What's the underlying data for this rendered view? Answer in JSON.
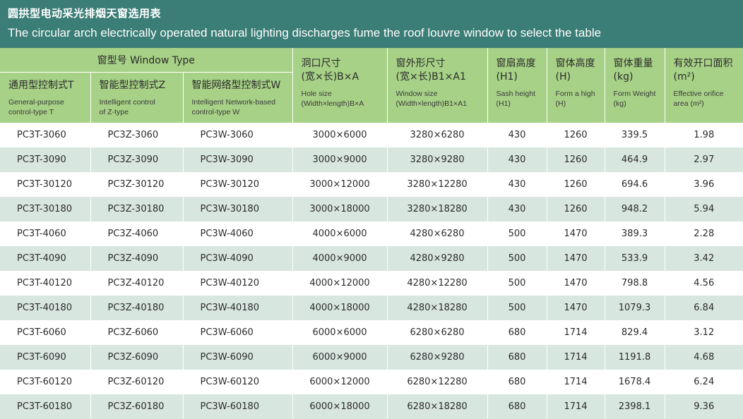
{
  "banner": {
    "title_cn": "圆拱型电动采光排烟天窗选用表",
    "title_en": "The circular arch electrically operated natural lighting discharges fume the roof louvre window to select the table"
  },
  "table": {
    "group_header": "窗型号   Window Type",
    "columns": [
      {
        "cn": "通用型控制式T",
        "en1": "General-purpose",
        "en2": "control-type T"
      },
      {
        "cn": "智能型控制式Z",
        "en1": "Intelligent control",
        "en2": "of Z-type"
      },
      {
        "cn": "智能网络型控制式W",
        "en1": "Intelligent Network-based",
        "en2": "control-type W"
      },
      {
        "cn1": "洞口尺寸",
        "cn2": "(宽×长)B×A",
        "en1": "Hole size",
        "en2": "(Width×length)B×A"
      },
      {
        "cn1": "窗外形尺寸",
        "cn2": "(宽×长)B1×A1",
        "en1": "Window size",
        "en2": "(Width×length)B1×A1"
      },
      {
        "cn1": "窗扇高度",
        "cn2": "(H1)",
        "en1": "Sash height",
        "en2": "(H1)"
      },
      {
        "cn1": "窗体高度",
        "cn2": "(H)",
        "en1": "Form a high",
        "en2": "(H)"
      },
      {
        "cn1": "窗体重量",
        "cn2": "(kg)",
        "en1": "Form Weight",
        "en2": "(kg)"
      },
      {
        "cn1": "有效开口面积",
        "cn2": "(m²)",
        "en1": "Effective orifice",
        "en2": "area (m²)"
      }
    ],
    "rows": [
      [
        "PC3T-3060",
        "PC3Z-3060",
        "PC3W-3060",
        "3000×6000",
        "3280×6280",
        "430",
        "1260",
        "339.5",
        "1.98"
      ],
      [
        "PC3T-3090",
        "PC3Z-3090",
        "PC3W-3090",
        "3000×9000",
        "3280×9280",
        "430",
        "1260",
        "464.9",
        "2.97"
      ],
      [
        "PC3T-30120",
        "PC3Z-30120",
        "PC3W-30120",
        "3000×12000",
        "3280×12280",
        "430",
        "1260",
        "694.6",
        "3.96"
      ],
      [
        "PC3T-30180",
        "PC3Z-30180",
        "PC3W-30180",
        "3000×18000",
        "3280×18280",
        "430",
        "1260",
        "948.2",
        "5.94"
      ],
      [
        "PC3T-4060",
        "PC3Z-4060",
        "PC3W-4060",
        "4000×6000",
        "4280×6280",
        "500",
        "1470",
        "389.3",
        "2.28"
      ],
      [
        "PC3T-4090",
        "PC3Z-4090",
        "PC3W-4090",
        "4000×9000",
        "4280×9280",
        "500",
        "1470",
        "533.9",
        "3.42"
      ],
      [
        "PC3T-40120",
        "PC3Z-40120",
        "PC3W-40120",
        "4000×12000",
        "4280×12280",
        "500",
        "1470",
        "798.8",
        "4.56"
      ],
      [
        "PC3T-40180",
        "PC3Z-40180",
        "PC3W-40180",
        "4000×18000",
        "4280×18280",
        "500",
        "1470",
        "1079.3",
        "6.84"
      ],
      [
        "PC3T-6060",
        "PC3Z-6060",
        "PC3W-6060",
        "6000×6000",
        "6280×6280",
        "680",
        "1714",
        "829.4",
        "3.12"
      ],
      [
        "PC3T-6090",
        "PC3Z-6090",
        "PC3W-6090",
        "6000×9000",
        "6280×9280",
        "680",
        "1714",
        "1191.8",
        "4.68"
      ],
      [
        "PC3T-60120",
        "PC3Z-60120",
        "PC3W-60120",
        "6000×12000",
        "6280×12280",
        "680",
        "1714",
        "1678.4",
        "6.24"
      ],
      [
        "PC3T-60180",
        "PC3Z-60180",
        "PC3W-60180",
        "6000×18000",
        "6280×18280",
        "680",
        "1714",
        "2398.1",
        "9.36"
      ]
    ]
  },
  "colors": {
    "banner_bg": "#3b7d77",
    "header_bg": "#a7d186",
    "alt_row_bg": "#d8e6e0"
  }
}
